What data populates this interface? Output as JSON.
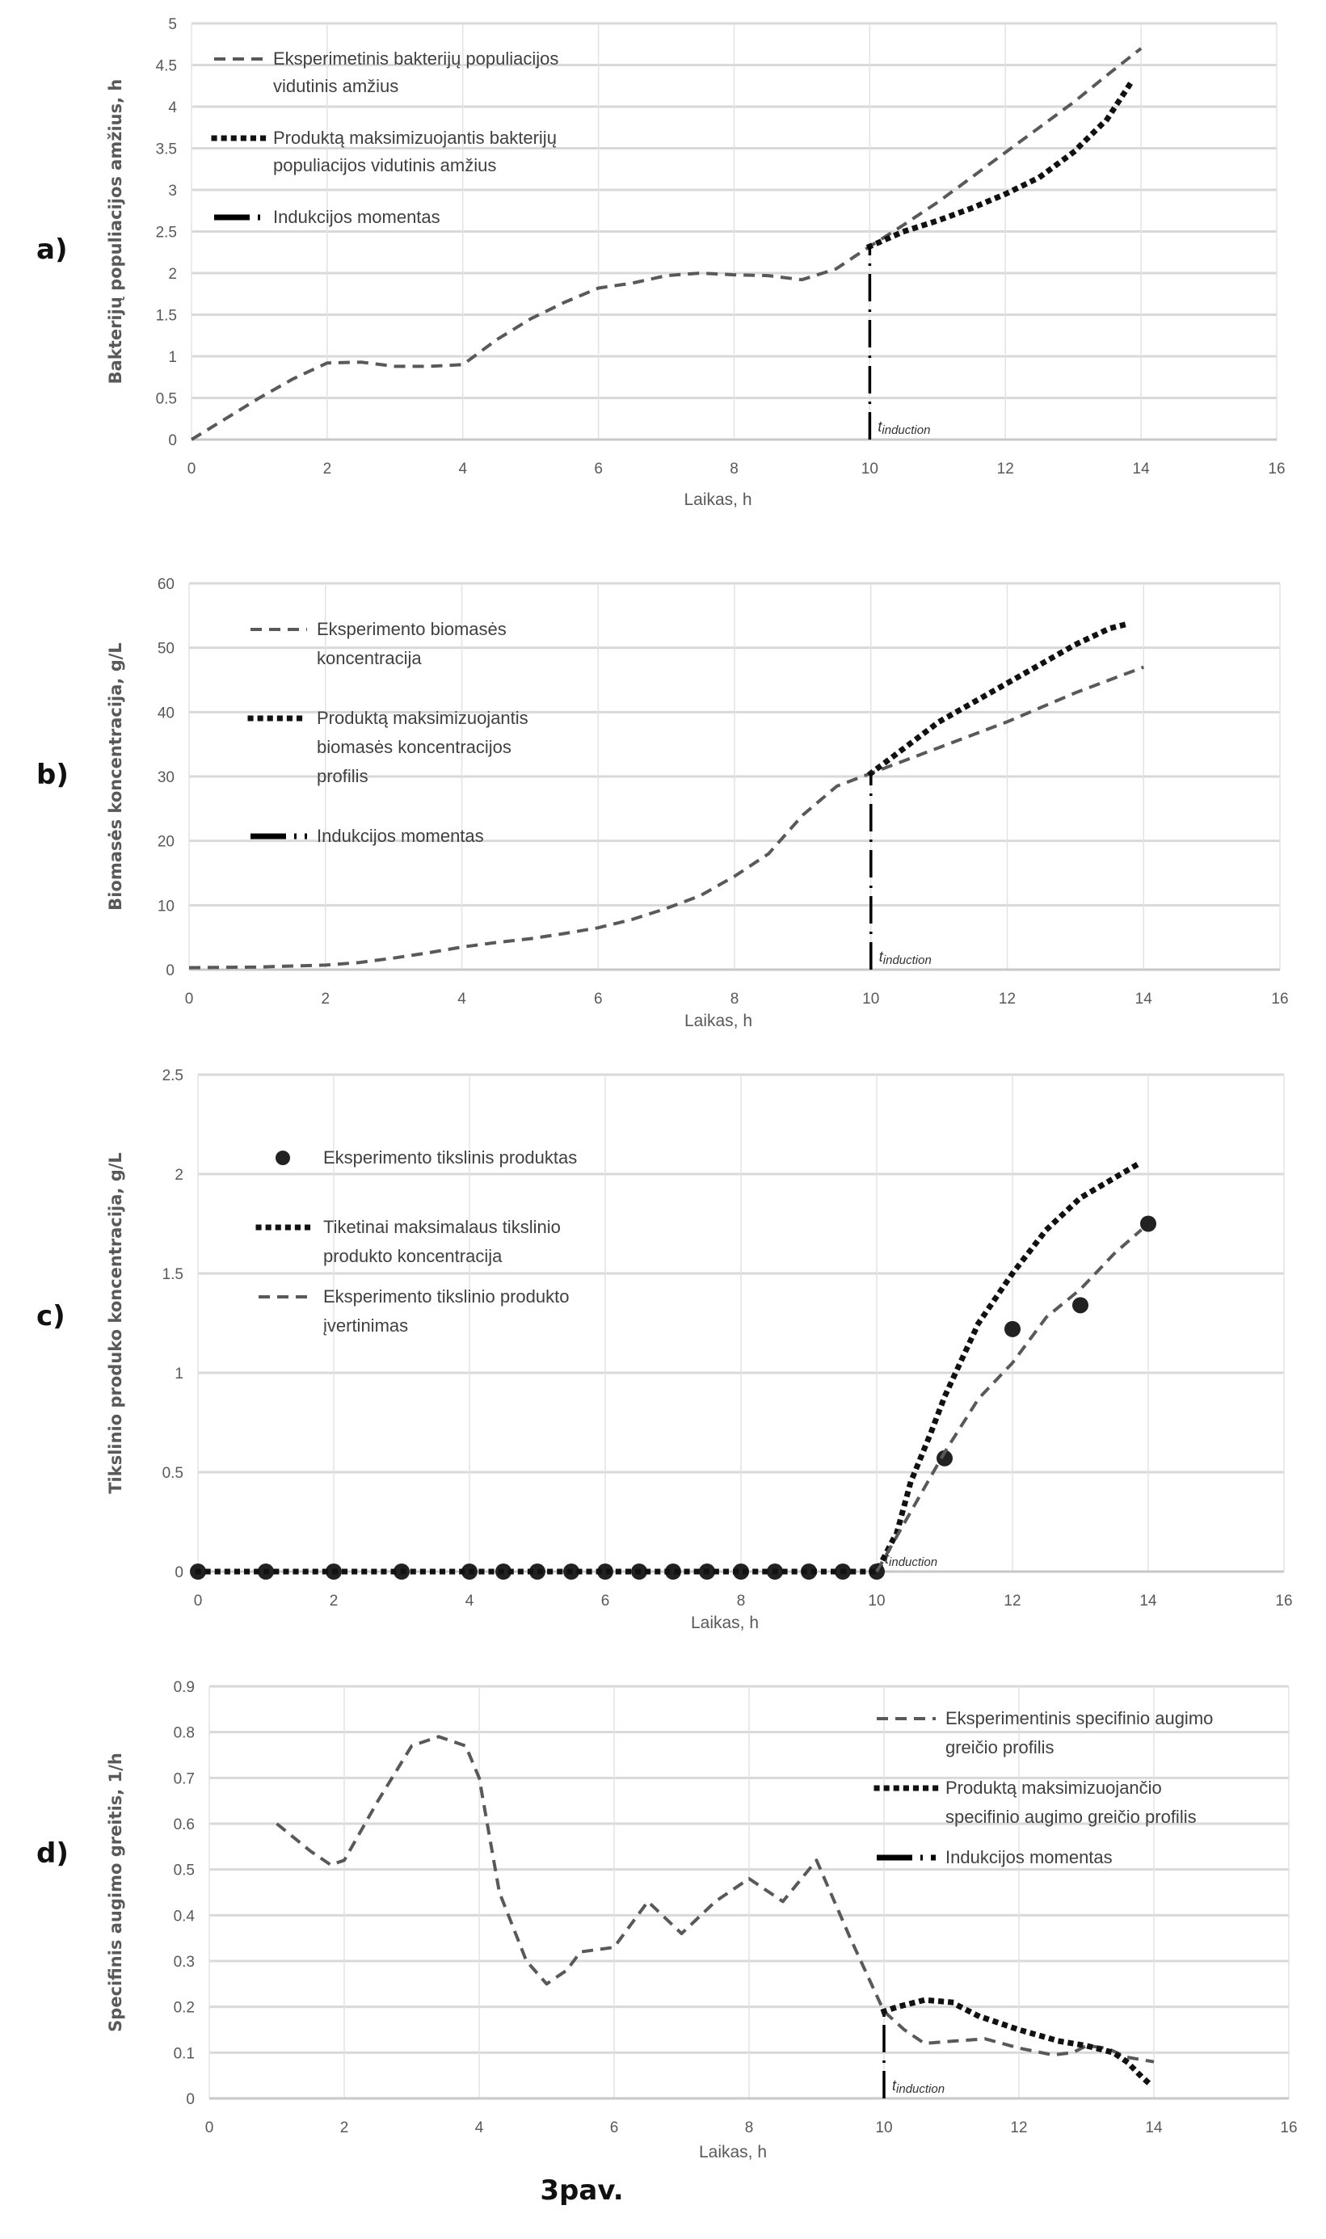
{
  "figure_caption": "3pav.",
  "chart_data": [
    {
      "panel": "a)",
      "type": "line",
      "title": "",
      "xlabel": "Laikas, h",
      "ylabel": "Bakterijų populiacijos amžius, h",
      "xlim": [
        0,
        16
      ],
      "ylim": [
        0,
        5
      ],
      "xticks": [
        0,
        2,
        4,
        6,
        8,
        10,
        12,
        14,
        16
      ],
      "yticks": [
        0,
        0.5,
        1,
        1.5,
        2,
        2.5,
        3,
        3.5,
        4,
        4.5,
        5
      ],
      "ytick_labels": [
        "0",
        "0.5",
        "1",
        "1.5",
        "2",
        "2.5",
        "3",
        "3.5",
        "4",
        "4.5",
        "5"
      ],
      "grid": true,
      "legend_position": "top-left",
      "induction_x": 10,
      "induction_label": "t",
      "induction_sub": "induction",
      "series": [
        {
          "name": "Eksperimetinis bakterijų populiacijos vidutinis amžius",
          "legend_lines": [
            "Eksperimetinis bakterijų populiacijos",
            "vidutinis amžius"
          ],
          "style": "dashed",
          "color": "#595959",
          "x": [
            0,
            0.5,
            1,
            1.5,
            2,
            2.5,
            3,
            3.5,
            4,
            4.5,
            5,
            5.5,
            6,
            6.5,
            7,
            7.5,
            8,
            8.5,
            9,
            9.5,
            10,
            10.5,
            11,
            11.5,
            12,
            12.5,
            13,
            13.5,
            14
          ],
          "y": [
            0,
            0.25,
            0.5,
            0.73,
            0.92,
            0.93,
            0.88,
            0.88,
            0.9,
            1.2,
            1.45,
            1.65,
            1.82,
            1.88,
            1.97,
            2.0,
            1.98,
            1.97,
            1.92,
            2.05,
            2.32,
            2.58,
            2.85,
            3.15,
            3.45,
            3.75,
            4.05,
            4.38,
            4.7
          ]
        },
        {
          "name": "Produktą maksimizuojantis bakterijų populiacijos vidutinis amžius",
          "legend_lines": [
            "Produktą maksimizuojantis bakterijų",
            "populiacijos vidutinis amžius"
          ],
          "style": "dotted",
          "color": "#111111",
          "x": [
            10,
            10.5,
            11,
            11.5,
            12,
            12.5,
            13,
            13.5,
            13.9
          ],
          "y": [
            2.32,
            2.5,
            2.63,
            2.78,
            2.95,
            3.15,
            3.45,
            3.85,
            4.35
          ]
        },
        {
          "name": "Indukcijos momentas",
          "legend_lines": [
            "Indukcijos momentas"
          ],
          "style": "dashdot",
          "color": "#000000",
          "x": [
            10,
            10
          ],
          "y": [
            0,
            2.32
          ]
        }
      ]
    },
    {
      "panel": "b)",
      "type": "line",
      "title": "",
      "xlabel": "Laikas, h",
      "ylabel": "Biomasės koncentracija, g/L",
      "xlim": [
        0,
        16
      ],
      "ylim": [
        0,
        60
      ],
      "xticks": [
        0,
        2,
        4,
        6,
        8,
        10,
        12,
        14,
        16
      ],
      "yticks": [
        0,
        10,
        20,
        30,
        40,
        50,
        60
      ],
      "ytick_labels": [
        "0",
        "10",
        "20",
        "30",
        "40",
        "50",
        "60"
      ],
      "grid": true,
      "legend_position": "top-left",
      "induction_x": 10,
      "induction_label": "t",
      "induction_sub": "induction",
      "series": [
        {
          "name": "Eksperimento biomasės koncentracija",
          "legend_lines": [
            "Eksperimento biomasės",
            "koncentracija"
          ],
          "style": "dashed",
          "color": "#595959",
          "x": [
            0,
            1,
            2,
            2.5,
            3,
            3.5,
            4,
            4.5,
            5,
            5.5,
            6,
            6.5,
            7,
            7.5,
            8,
            8.5,
            9,
            9.5,
            10,
            11,
            12,
            13,
            14
          ],
          "y": [
            0.3,
            0.4,
            0.7,
            1.1,
            1.8,
            2.6,
            3.5,
            4.2,
            4.8,
            5.6,
            6.5,
            7.8,
            9.5,
            11.5,
            14.5,
            18,
            24,
            28.5,
            30.5,
            34.5,
            38.5,
            43,
            47
          ]
        },
        {
          "name": "Produktą maksimizuojantis biomasės koncentracijos profilis",
          "legend_lines": [
            "Produktą maksimizuojantis",
            "biomasės koncentracijos",
            "profilis"
          ],
          "style": "dotted",
          "color": "#111111",
          "x": [
            10,
            10.5,
            11,
            11.5,
            12,
            12.5,
            13,
            13.5,
            13.8
          ],
          "y": [
            30.5,
            34.5,
            38.5,
            41.5,
            44.5,
            47.5,
            50.5,
            53,
            53.8
          ]
        },
        {
          "name": "Indukcijos momentas",
          "legend_lines": [
            "Indukcijos momentas"
          ],
          "style": "dashdot",
          "color": "#000000",
          "x": [
            10,
            10
          ],
          "y": [
            0,
            30.5
          ]
        }
      ]
    },
    {
      "panel": "c)",
      "type": "line",
      "title": "",
      "xlabel": "Laikas, h",
      "ylabel": "Tikslinio produko koncentracija, g/L",
      "xlim": [
        0,
        16
      ],
      "ylim": [
        0,
        2.5
      ],
      "xticks": [
        0,
        2,
        4,
        6,
        8,
        10,
        12,
        14,
        16
      ],
      "yticks": [
        0,
        0.5,
        1,
        1.5,
        2,
        2.5
      ],
      "ytick_labels": [
        "0",
        "0.5",
        "1",
        "1.5",
        "2",
        "2.5"
      ],
      "grid": true,
      "legend_position": "top-left",
      "induction_x": 10,
      "induction_label": "t",
      "induction_sub": "induction",
      "series": [
        {
          "name": "Eksperimento tikslinis produktas",
          "legend_lines": [
            "Eksperimento tikslinis produktas"
          ],
          "style": "markers",
          "color": "#222222",
          "x": [
            0,
            1,
            2,
            3,
            4,
            4.5,
            5,
            5.5,
            6,
            6.5,
            7,
            7.5,
            8,
            8.5,
            9,
            9.5,
            10,
            11,
            12,
            13,
            14
          ],
          "y": [
            0,
            0,
            0,
            0,
            0,
            0,
            0,
            0,
            0,
            0,
            0,
            0,
            0,
            0,
            0,
            0,
            0,
            0.57,
            1.22,
            1.34,
            1.75
          ]
        },
        {
          "name": "Tiketinai maksimalaus tikslinio produkto koncentracija",
          "legend_lines": [
            "Tiketinai maksimalaus tikslinio",
            "produkto koncentracija"
          ],
          "style": "dotted",
          "color": "#111111",
          "x": [
            0,
            10,
            10.3,
            10.5,
            10.8,
            11,
            11.5,
            12,
            12.5,
            13,
            13.5,
            13.9
          ],
          "y": [
            0,
            0,
            0.2,
            0.45,
            0.7,
            0.88,
            1.25,
            1.5,
            1.72,
            1.88,
            1.98,
            2.06
          ]
        },
        {
          "name": "Eksperimento tikslinio produkto įvertinimas",
          "legend_lines": [
            "Eksperimento tikslinio produkto",
            "įvertinimas"
          ],
          "style": "dashed",
          "color": "#595959",
          "x": [
            10,
            10.5,
            11,
            11.5,
            12,
            12.5,
            13,
            13.5,
            13.9
          ],
          "y": [
            0,
            0.3,
            0.6,
            0.87,
            1.05,
            1.28,
            1.42,
            1.6,
            1.72
          ]
        }
      ]
    },
    {
      "panel": "d)",
      "type": "line",
      "title": "",
      "xlabel": "Laikas, h",
      "ylabel": "Specifinis augimo greitis, 1/h",
      "xlim": [
        0,
        16
      ],
      "ylim": [
        0,
        0.9
      ],
      "xticks": [
        0,
        2,
        4,
        6,
        8,
        10,
        12,
        14,
        16
      ],
      "yticks": [
        0,
        0.1,
        0.2,
        0.3,
        0.4,
        0.5,
        0.6,
        0.7,
        0.8,
        0.9
      ],
      "ytick_labels": [
        "0",
        "0.1",
        "0.2",
        "0.3",
        "0.4",
        "0.5",
        "0.6",
        "0.7",
        "0.8",
        "0.9"
      ],
      "grid": true,
      "legend_position": "top-right",
      "induction_x": 10,
      "induction_label": "t",
      "induction_sub": "induction",
      "series": [
        {
          "name": "Eksperimentinis specifinio augimo greičio profilis",
          "legend_lines": [
            "Eksperimentinis specifinio augimo",
            "greičio profilis"
          ],
          "style": "dashed",
          "color": "#595959",
          "x": [
            1,
            1.5,
            1.8,
            2,
            2.5,
            3,
            3.4,
            3.8,
            4,
            4.3,
            4.7,
            5,
            5.3,
            5.5,
            6,
            6.5,
            7,
            7.5,
            8,
            8.5,
            9,
            9.5,
            10,
            10.3,
            10.6,
            11,
            11.5,
            12,
            12.5,
            12.8,
            13,
            13.3,
            13.6,
            14
          ],
          "y": [
            0.6,
            0.54,
            0.51,
            0.52,
            0.65,
            0.77,
            0.79,
            0.77,
            0.7,
            0.45,
            0.3,
            0.25,
            0.28,
            0.32,
            0.33,
            0.43,
            0.36,
            0.43,
            0.48,
            0.43,
            0.52,
            0.35,
            0.19,
            0.15,
            0.12,
            0.125,
            0.13,
            0.11,
            0.095,
            0.1,
            0.115,
            0.11,
            0.09,
            0.08
          ]
        },
        {
          "name": "Produktą maksimizuojančio specifinio augimo greičio profilis",
          "legend_lines": [
            "Produktą maksimizuojančio",
            "specifinio augimo greičio profilis"
          ],
          "style": "dotted",
          "color": "#111111",
          "x": [
            10,
            10.2,
            10.6,
            11,
            11.4,
            12,
            12.6,
            13,
            13.4,
            13.6,
            13.8,
            13.95
          ],
          "y": [
            0.19,
            0.2,
            0.215,
            0.21,
            0.18,
            0.15,
            0.125,
            0.115,
            0.1,
            0.08,
            0.05,
            0.03
          ]
        },
        {
          "name": "Indukcijos momentas",
          "legend_lines": [
            "Indukcijos momentas"
          ],
          "style": "dashdot",
          "color": "#000000",
          "x": [
            10,
            10
          ],
          "y": [
            0,
            0.19
          ]
        }
      ]
    }
  ]
}
